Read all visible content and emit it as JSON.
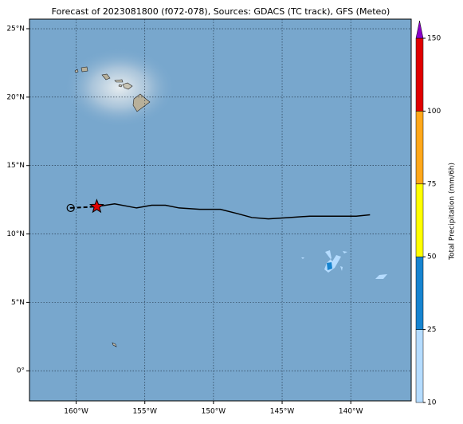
{
  "chart_data": {
    "type": "map",
    "title": "Forecast of 2023081800 (f072-078), Sources: GDACS (TC track), GFS (Meteo)",
    "xlim": [
      -163.4,
      -135.6
    ],
    "ylim": [
      -2.2,
      25.7
    ],
    "xticks": [
      {
        "value": -160,
        "label": "160°W"
      },
      {
        "value": -155,
        "label": "155°W"
      },
      {
        "value": -150,
        "label": "150°W"
      },
      {
        "value": -145,
        "label": "145°W"
      },
      {
        "value": -140,
        "label": "140°W"
      }
    ],
    "yticks": [
      {
        "value": 0,
        "label": "0°"
      },
      {
        "value": 5,
        "label": "5°N"
      },
      {
        "value": 10,
        "label": "10°N"
      },
      {
        "value": 15,
        "label": "15°N"
      },
      {
        "value": 20,
        "label": "20°N"
      },
      {
        "value": 25,
        "label": "25°N"
      }
    ],
    "grid": true,
    "track": {
      "color": "#000000",
      "star_color": "#e00000",
      "x": [
        -160.4,
        -158.5,
        -157.2,
        -155.6,
        -154.5,
        -153.5,
        -152.5,
        -151,
        -149.5,
        -148.3,
        -147.2,
        -146,
        -144.5,
        -143,
        -141,
        -139.6,
        -138.6
      ],
      "y": [
        11.9,
        12.0,
        12.2,
        11.9,
        12.1,
        12.1,
        11.9,
        11.8,
        11.8,
        11.5,
        11.2,
        11.1,
        11.2,
        11.3,
        11.3,
        11.3,
        11.4
      ]
    },
    "colorbar": {
      "label": "Total Precipitation (mm/6h)",
      "ticks": [
        10,
        25,
        50,
        75,
        100,
        150
      ],
      "colors": [
        "#b5dcff",
        "#1684d0",
        "#ffff00",
        "#ffa81a",
        "#e00000"
      ],
      "extend_color": "#8a00c8"
    }
  }
}
